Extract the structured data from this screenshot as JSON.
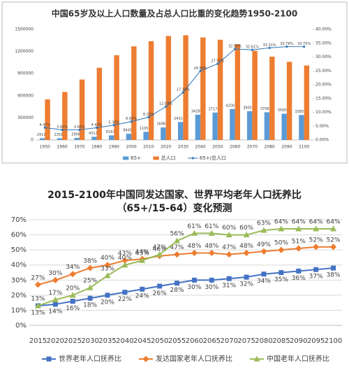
{
  "chart_data": [
    {
      "type": "bar",
      "title": "中国65岁及以上人口数量及占总人口比重的变化趋势1950-2100",
      "categories": [
        "1950",
        "1960",
        "1970",
        "1980",
        "1990",
        "2000",
        "2010",
        "2020",
        "2030",
        "2040",
        "2050",
        "2060",
        "2070",
        "2080",
        "2090",
        "2100"
      ],
      "series": [
        {
          "name": "65+",
          "type": "bar",
          "color": "#5b9bd5",
          "labels": true,
          "values": [
            24115,
            23517,
            29064,
            43131,
            61675,
            84452,
            110576,
            169606,
            243170,
            342805,
            371790,
            420070,
            390527,
            375889,
            356565,
            338590
          ]
        },
        {
          "name": "总人口",
          "type": "bar",
          "color": "#ed7d31",
          "values": [
            550000,
            650000,
            820000,
            980000,
            1150000,
            1270000,
            1340000,
            1410000,
            1420000,
            1390000,
            1360000,
            1300000,
            1210000,
            1130000,
            1060000,
            1010000
          ]
        },
        {
          "name": "65+/总人口",
          "type": "line",
          "axis": "y2",
          "color": "#2e75b6",
          "marker": "circle",
          "values": [
            4.47,
            3.65,
            3.66,
            4.43,
            5.36,
            6.65,
            8.25,
            12.09,
            17.18,
            24.99,
            27.55,
            32.9,
            32.61,
            33.31,
            33.78,
            33.75
          ],
          "value_labels": [
            "4.47%",
            "3.65%",
            "3.66%",
            "4.43%",
            "5.36%",
            "6.65%",
            "8.25%",
            "12.09%",
            "17.18%",
            "24.99%",
            "27.55%",
            "32.90%",
            "32.61%",
            "33.31%",
            "33.78%",
            "33.75%"
          ]
        }
      ],
      "ylim": [
        0,
        1500000
      ],
      "yticks": [
        0,
        300000,
        600000,
        900000,
        1200000,
        1500000
      ],
      "y2lim": [
        0,
        40
      ],
      "y2ticks": [
        {
          "value": 0,
          "label": "0.00%"
        },
        {
          "value": 5,
          "label": "5.00%"
        },
        {
          "value": 10,
          "label": "10.00%"
        },
        {
          "value": 15,
          "label": "15.00%"
        },
        {
          "value": 20,
          "label": "20.00%"
        },
        {
          "value": 25,
          "label": "25.00%"
        },
        {
          "value": 30,
          "label": "30.00%"
        },
        {
          "value": 35,
          "label": "35.00%"
        },
        {
          "value": 40,
          "label": "40.00%"
        }
      ],
      "grid": false,
      "legend": "bottom"
    },
    {
      "type": "line",
      "title": "2015-2100年中国同发达国家、世界平均老年人口抚养比（65+/15-64）变化预测",
      "categories": [
        "2015",
        "2020",
        "2025",
        "2030",
        "2035",
        "2040",
        "2045",
        "2050",
        "2055",
        "2060",
        "2065",
        "2070",
        "2075",
        "2080",
        "2085",
        "2090",
        "2095",
        "2100"
      ],
      "series": [
        {
          "name": "世界老年人口抚养比",
          "color": "#4472c4",
          "marker": "square",
          "label_pos": "below",
          "values": [
            13,
            14,
            16,
            18,
            20,
            22,
            24,
            26,
            28,
            30,
            30,
            31,
            32,
            34,
            35,
            36,
            37,
            38
          ],
          "value_labels": [
            "13%",
            "14%",
            "16%",
            "18%",
            "20%",
            "22%",
            "24%",
            "26%",
            "28%",
            "30%",
            "30%",
            "31%",
            "32%",
            "34%",
            "35%",
            "36%",
            "37%",
            "38%"
          ]
        },
        {
          "name": "发达国家老年人口抚养比",
          "color": "#ed7d31",
          "marker": "diamond",
          "label_pos": "above",
          "values": [
            27,
            30,
            34,
            38,
            40,
            43,
            44,
            46,
            47,
            48,
            48,
            47,
            48,
            49,
            50,
            51,
            52,
            52
          ],
          "value_labels": [
            "27%",
            "30%",
            "34%",
            "38%",
            "40%",
            "43%",
            "44%",
            "46%",
            "47%",
            "48%",
            "48%",
            "47%",
            "48%",
            "49%",
            "50%",
            "51%",
            "52%",
            "52%"
          ]
        },
        {
          "name": "中国老年人口抚养比",
          "color": "#9bbb59",
          "marker": "triangle",
          "label_pos": "above",
          "values": [
            13,
            17,
            20,
            25,
            33,
            40,
            43,
            47,
            56,
            61,
            61,
            60,
            60,
            63,
            64,
            64,
            64,
            64
          ],
          "value_labels": [
            "13%",
            "17%",
            "20%",
            "25%",
            "33%",
            "40%",
            "43%",
            "47%",
            "56%",
            "61%",
            "61%",
            "60%",
            "60%",
            "63%",
            "64%",
            "64%",
            "64%",
            "64%"
          ]
        }
      ],
      "ylim": [
        0,
        70
      ],
      "yticks": [
        {
          "value": 0,
          "label": "0%"
        },
        {
          "value": 10,
          "label": "10%"
        },
        {
          "value": 20,
          "label": "20%"
        },
        {
          "value": 30,
          "label": "30%"
        },
        {
          "value": 40,
          "label": "40%"
        },
        {
          "value": 50,
          "label": "50%"
        },
        {
          "value": 60,
          "label": "60%"
        },
        {
          "value": 70,
          "label": "70%"
        }
      ],
      "grid": true,
      "legend": "bottom"
    }
  ]
}
